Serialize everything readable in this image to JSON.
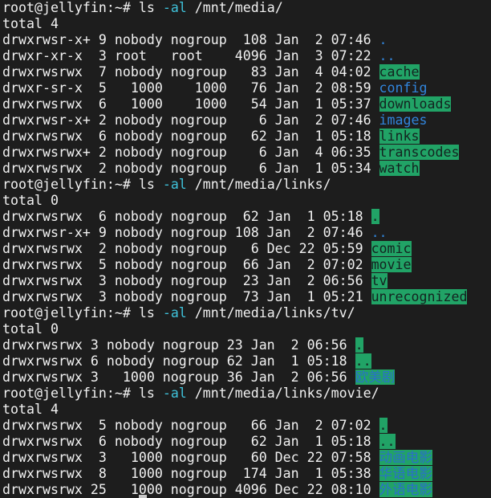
{
  "colors": {
    "bg": "#1d1d1d",
    "fg": "#f1f1f1",
    "cyan": "#3fc2da",
    "blue": "#3185dc",
    "green": "#21a366",
    "dgreen": "#142320",
    "cjkblue": "#2a70c8",
    "cursor": "#c8c8c8"
  },
  "terminal": {
    "prompt": "root@jellyfin:~#",
    "lines": [
      [
        {
          "t": "root@jellyfin:~# ",
          "s": "prompt"
        },
        {
          "t": "ls ",
          "s": "cmd"
        },
        {
          "t": "-al",
          "s": "flag"
        },
        {
          "t": " /mnt/media/",
          "s": "arg"
        }
      ],
      [
        {
          "t": "total 4",
          "s": "default"
        }
      ],
      [
        {
          "t": "drwxrwsr-x+ 9 nobody nogroup  108 Jan  2 07:46 ",
          "s": "default"
        },
        {
          "t": ".",
          "s": "dir"
        }
      ],
      [
        {
          "t": "drwxr-xr-x  3 root   root    4096 Jan  3 07:22 ",
          "s": "default"
        },
        {
          "t": "..",
          "s": "dir"
        }
      ],
      [
        {
          "t": "drwxrwsrwx  7 nobody nogroup   83 Jan  4 04:02 ",
          "s": "default"
        },
        {
          "t": "cache",
          "s": "owdir"
        }
      ],
      [
        {
          "t": "drwxr-sr-x  5   1000    1000   76 Jan  2 08:59 ",
          "s": "default"
        },
        {
          "t": "config",
          "s": "dir"
        }
      ],
      [
        {
          "t": "drwxrwsrwx  6   1000    1000   54 Jan  1 05:37 ",
          "s": "default"
        },
        {
          "t": "downloads",
          "s": "owdir"
        }
      ],
      [
        {
          "t": "drwxrwsr-x+ 2 nobody nogroup    6 Jan  2 07:46 ",
          "s": "default"
        },
        {
          "t": "images",
          "s": "dir"
        }
      ],
      [
        {
          "t": "drwxrwsrwx  6 nobody nogroup   62 Jan  1 05:18 ",
          "s": "default"
        },
        {
          "t": "links",
          "s": "owdir"
        }
      ],
      [
        {
          "t": "drwxrwsrwx+ 2 nobody nogroup    6 Jan  4 06:35 ",
          "s": "default"
        },
        {
          "t": "transcodes",
          "s": "owdir"
        }
      ],
      [
        {
          "t": "drwxrwsrwx  2 nobody nogroup    6 Jan  1 05:34 ",
          "s": "default"
        },
        {
          "t": "watch",
          "s": "owdir"
        }
      ],
      [
        {
          "t": "root@jellyfin:~# ",
          "s": "prompt"
        },
        {
          "t": "ls ",
          "s": "cmd"
        },
        {
          "t": "-al",
          "s": "flag"
        },
        {
          "t": " /mnt/media/links/",
          "s": "arg"
        }
      ],
      [
        {
          "t": "total 0",
          "s": "default"
        }
      ],
      [
        {
          "t": "drwxrwsrwx  6 nobody nogroup  62 Jan  1 05:18 ",
          "s": "default"
        },
        {
          "t": ".",
          "s": "owdir"
        }
      ],
      [
        {
          "t": "drwxrwsr-x+ 9 nobody nogroup 108 Jan  2 07:46 ",
          "s": "default"
        },
        {
          "t": "..",
          "s": "dir"
        }
      ],
      [
        {
          "t": "drwxrwsrwx  2 nobody nogroup   6 Dec 22 05:59 ",
          "s": "default"
        },
        {
          "t": "comic",
          "s": "owdir"
        }
      ],
      [
        {
          "t": "drwxrwsrwx  5 nobody nogroup  66 Jan  2 07:02 ",
          "s": "default"
        },
        {
          "t": "movie",
          "s": "owdir"
        }
      ],
      [
        {
          "t": "drwxrwsrwx  3 nobody nogroup  23 Jan  2 06:56 ",
          "s": "default"
        },
        {
          "t": "tv",
          "s": "owdir"
        }
      ],
      [
        {
          "t": "drwxrwsrwx  3 nobody nogroup  73 Jan  1 05:21 ",
          "s": "default"
        },
        {
          "t": "unrecognized",
          "s": "owdir"
        }
      ],
      [
        {
          "t": "root@jellyfin:~# ",
          "s": "prompt"
        },
        {
          "t": "ls ",
          "s": "cmd"
        },
        {
          "t": "-al",
          "s": "flag"
        },
        {
          "t": " /mnt/media/links/tv/",
          "s": "arg"
        }
      ],
      [
        {
          "t": "total 0",
          "s": "default"
        }
      ],
      [
        {
          "t": "drwxrwsrwx 3 nobody nogroup 23 Jan  2 06:56 ",
          "s": "default"
        },
        {
          "t": ".",
          "s": "owdir"
        }
      ],
      [
        {
          "t": "drwxrwsrwx 6 nobody nogroup 62 Jan  1 05:18 ",
          "s": "default"
        },
        {
          "t": "..",
          "s": "owdir"
        }
      ],
      [
        {
          "t": "drwxrwsrwx 3   1000 nogroup 36 Jan  2 06:56 ",
          "s": "default"
        },
        {
          "t": "欧美剧",
          "s": "owdir-cjk"
        }
      ],
      [
        {
          "t": "root@jellyfin:~# ",
          "s": "prompt"
        },
        {
          "t": "ls ",
          "s": "cmd"
        },
        {
          "t": "-al",
          "s": "flag"
        },
        {
          "t": " /mnt/media/links/movie/",
          "s": "arg"
        }
      ],
      [
        {
          "t": "total 4",
          "s": "default"
        }
      ],
      [
        {
          "t": "drwxrwsrwx  5 nobody nogroup   66 Jan  2 07:02 ",
          "s": "default"
        },
        {
          "t": ".",
          "s": "owdir"
        }
      ],
      [
        {
          "t": "drwxrwsrwx  6 nobody nogroup   62 Jan  1 05:18 ",
          "s": "default"
        },
        {
          "t": "..",
          "s": "owdir"
        }
      ],
      [
        {
          "t": "drwxrwsrwx  3   1000 nogroup   60 Dec 22 07:58 ",
          "s": "default"
        },
        {
          "t": "动画电影",
          "s": "owdir-cjk"
        }
      ],
      [
        {
          "t": "drwxrwsrwx  8   1000 nogroup  174 Jan  1 05:38 ",
          "s": "default"
        },
        {
          "t": "华语电影",
          "s": "owdir-cjk"
        }
      ],
      [
        {
          "t": "drwxrwsrwx 25   1000 nogroup 4096 Dec 22 08:10 ",
          "s": "default"
        },
        {
          "t": "外语电影",
          "s": "owdir-cjk"
        }
      ]
    ]
  }
}
